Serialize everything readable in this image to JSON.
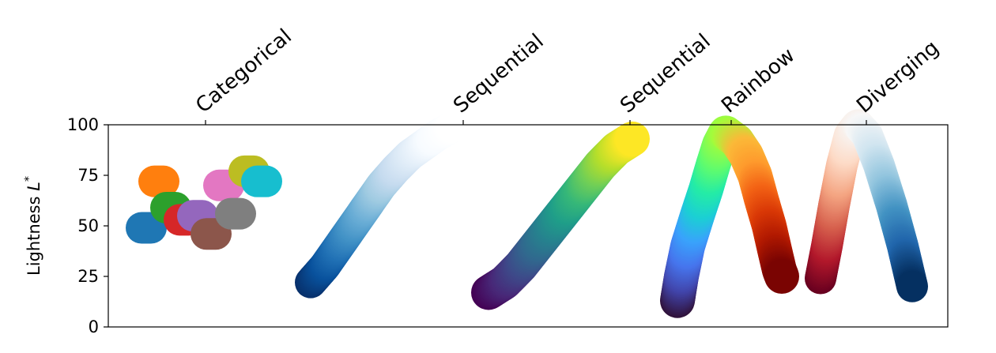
{
  "chart_data": {
    "type": "scatter",
    "title": "",
    "ylabel": "Lightness L*",
    "ylabel_parts": {
      "text": "Lightness ",
      "symbol": "L",
      "superscript": "*"
    },
    "ylim": [
      0,
      100
    ],
    "yticks": [
      0,
      25,
      50,
      75,
      100
    ],
    "ytick_labels": [
      "0",
      "25",
      "50",
      "75",
      "100"
    ],
    "grid": false,
    "categories": [
      "Categorical",
      "Sequential",
      "Sequential",
      "Rainbow",
      "Diverging"
    ],
    "series": [
      {
        "name": "Categorical",
        "kind": "points",
        "points": [
          {
            "y": 49,
            "color": "#1f77b4"
          },
          {
            "y": 72,
            "color": "#ff7f0e"
          },
          {
            "y": 59,
            "color": "#2ca02c"
          },
          {
            "y": 53,
            "color": "#d62728"
          },
          {
            "y": 55,
            "color": "#9467bd"
          },
          {
            "y": 46,
            "color": "#8c564b"
          },
          {
            "y": 70,
            "color": "#e377c2"
          },
          {
            "y": 56,
            "color": "#7f7f7f"
          },
          {
            "y": 77,
            "color": "#bcbd22"
          },
          {
            "y": 72,
            "color": "#17becf"
          }
        ]
      },
      {
        "name": "Sequential",
        "colormap": "Blues",
        "kind": "stroke",
        "lightness": [
          22,
          30,
          40,
          50,
          60,
          70,
          78,
          85,
          90,
          95,
          99
        ],
        "colors": [
          "#08306b",
          "#08519c",
          "#2171b5",
          "#4292c6",
          "#6baed6",
          "#9ecae1",
          "#c6dbef",
          "#deebf7",
          "#f7fbff",
          "#ffffff"
        ]
      },
      {
        "name": "Sequential",
        "colormap": "viridis",
        "kind": "stroke",
        "lightness": [
          17,
          22,
          30,
          40,
          50,
          60,
          70,
          80,
          88,
          93
        ],
        "colors": [
          "#440154",
          "#482878",
          "#3e4989",
          "#31688e",
          "#26828e",
          "#1f9e89",
          "#35b779",
          "#6ece58",
          "#b5de2b",
          "#fde725"
        ]
      },
      {
        "name": "Rainbow",
        "colormap": "jet-like",
        "kind": "stroke",
        "lightness": [
          13,
          25,
          40,
          55,
          68,
          80,
          90,
          96,
          92,
          85,
          75,
          62,
          50,
          38,
          28,
          25
        ],
        "colors": [
          "#30123b",
          "#4145ab",
          "#4675ed",
          "#39a2fc",
          "#1bcfd4",
          "#24eca6",
          "#61fc6c",
          "#a4fc3b",
          "#fbb938",
          "#fe9b2d",
          "#f36315",
          "#d93806",
          "#b11901",
          "#7a0402"
        ]
      },
      {
        "name": "Diverging",
        "colormap": "RdBu",
        "kind": "stroke",
        "lightness": [
          24,
          40,
          60,
          80,
          95,
          100,
          95,
          80,
          60,
          40,
          20
        ],
        "colors": [
          "#67001f",
          "#b2182b",
          "#d6604d",
          "#f4a582",
          "#fddbc7",
          "#f7f7f7",
          "#d1e5f0",
          "#92c5de",
          "#4393c3",
          "#2166ac",
          "#053061"
        ]
      }
    ]
  }
}
